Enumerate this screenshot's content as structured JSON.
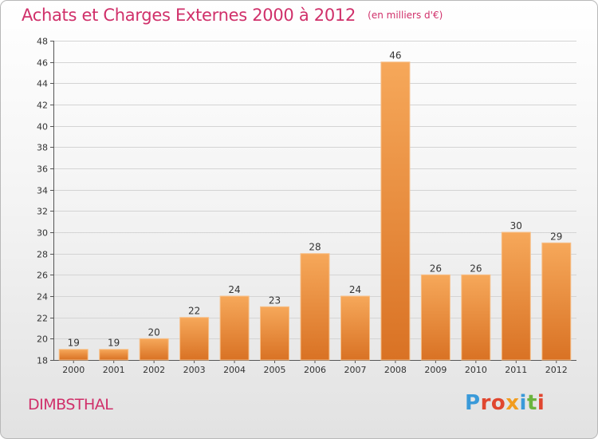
{
  "header": {
    "title": "Achats et Charges Externes 2000 à 2012",
    "unit": "(en milliers d'€)"
  },
  "footer": {
    "commune": "DIMBSTHAL",
    "brand": "Proxiti"
  },
  "colors": {
    "title": "#d0306a",
    "bar_light": "#f6a85a",
    "bar_dark": "#d97224",
    "brand_letters": [
      "#3a9ad9",
      "#e0462f",
      "#e0462f",
      "#f29c1f",
      "#3a9ad9",
      "#6ab43e",
      "#e0462f"
    ]
  },
  "chart_data": {
    "type": "bar",
    "title": "Achats et Charges Externes 2000 à 2012",
    "xlabel": "",
    "ylabel": "",
    "categories": [
      "2000",
      "2001",
      "2002",
      "2003",
      "2004",
      "2005",
      "2006",
      "2007",
      "2008",
      "2009",
      "2010",
      "2011",
      "2012"
    ],
    "values": [
      19,
      19,
      20,
      22,
      24,
      23,
      28,
      24,
      46,
      26,
      26,
      30,
      29
    ],
    "ylim": [
      18,
      48
    ],
    "yticks": [
      18,
      20,
      22,
      24,
      26,
      28,
      30,
      32,
      34,
      36,
      38,
      40,
      42,
      44,
      46,
      48
    ],
    "grid": "horizontal"
  }
}
